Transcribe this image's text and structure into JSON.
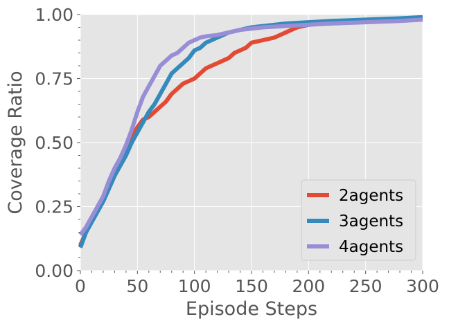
{
  "chart_data": {
    "type": "line",
    "title": "",
    "xlabel": "Episode Steps",
    "ylabel": "Coverage Ratio",
    "xlim": [
      0,
      300
    ],
    "ylim": [
      0,
      1
    ],
    "x_ticks": [
      "0",
      "50",
      "100",
      "150",
      "200",
      "250",
      "300"
    ],
    "y_ticks": [
      "0.00",
      "0.25",
      "0.50",
      "0.75",
      "1.00"
    ],
    "grid": true,
    "legend_position": "bottom-right",
    "series": [
      {
        "name": "2agents",
        "color": "#E24A33",
        "x": [
          0,
          5,
          10,
          15,
          20,
          25,
          30,
          35,
          40,
          45,
          50,
          55,
          60,
          65,
          70,
          75,
          80,
          85,
          90,
          95,
          100,
          105,
          110,
          115,
          120,
          125,
          130,
          135,
          140,
          145,
          150,
          160,
          170,
          180,
          190,
          200,
          220,
          250,
          280,
          300
        ],
        "y": [
          0.1,
          0.15,
          0.2,
          0.24,
          0.28,
          0.33,
          0.38,
          0.43,
          0.47,
          0.52,
          0.56,
          0.59,
          0.6,
          0.62,
          0.64,
          0.66,
          0.69,
          0.71,
          0.73,
          0.74,
          0.75,
          0.77,
          0.79,
          0.8,
          0.81,
          0.82,
          0.83,
          0.85,
          0.86,
          0.87,
          0.89,
          0.9,
          0.91,
          0.93,
          0.95,
          0.96,
          0.97,
          0.975,
          0.98,
          0.985
        ]
      },
      {
        "name": "3agents",
        "color": "#348ABD",
        "x": [
          0,
          5,
          10,
          15,
          20,
          25,
          30,
          35,
          40,
          45,
          50,
          55,
          60,
          65,
          70,
          75,
          80,
          85,
          90,
          95,
          100,
          105,
          110,
          115,
          120,
          125,
          130,
          135,
          140,
          145,
          150,
          160,
          170,
          180,
          200,
          220,
          250,
          280,
          300
        ],
        "y": [
          0.09,
          0.15,
          0.19,
          0.23,
          0.27,
          0.32,
          0.37,
          0.41,
          0.45,
          0.5,
          0.54,
          0.58,
          0.62,
          0.65,
          0.69,
          0.73,
          0.77,
          0.79,
          0.81,
          0.83,
          0.86,
          0.87,
          0.89,
          0.9,
          0.91,
          0.92,
          0.93,
          0.935,
          0.94,
          0.945,
          0.95,
          0.955,
          0.96,
          0.965,
          0.97,
          0.975,
          0.98,
          0.985,
          0.99
        ]
      },
      {
        "name": "4agents",
        "color": "#988ED5",
        "x": [
          0,
          5,
          10,
          15,
          20,
          25,
          30,
          35,
          40,
          45,
          50,
          55,
          60,
          65,
          70,
          75,
          80,
          85,
          90,
          95,
          100,
          105,
          110,
          120,
          130,
          140,
          150,
          160,
          180,
          200,
          220,
          250,
          280,
          300
        ],
        "y": [
          0.14,
          0.17,
          0.21,
          0.25,
          0.29,
          0.35,
          0.4,
          0.44,
          0.49,
          0.55,
          0.62,
          0.68,
          0.72,
          0.76,
          0.8,
          0.82,
          0.84,
          0.85,
          0.87,
          0.89,
          0.9,
          0.91,
          0.915,
          0.92,
          0.93,
          0.94,
          0.945,
          0.95,
          0.955,
          0.96,
          0.965,
          0.97,
          0.975,
          0.98
        ]
      }
    ]
  }
}
